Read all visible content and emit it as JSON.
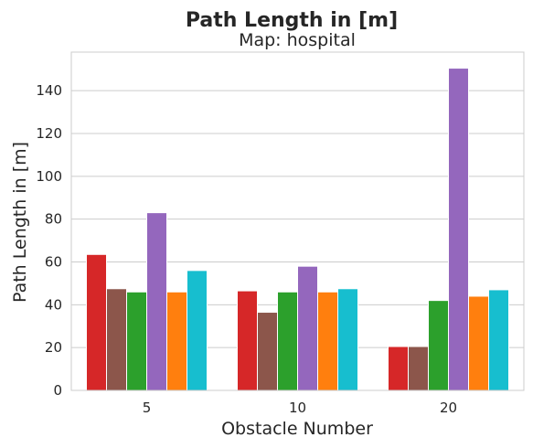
{
  "chart_data": {
    "type": "bar",
    "title": "Path Length in [m]",
    "subtitle": "Map: hospital",
    "xlabel": "Obstacle Number",
    "ylabel": "Path Length in [m]",
    "categories": [
      "5",
      "10",
      "20"
    ],
    "ylim": [
      0,
      158
    ],
    "yticks": [
      "0",
      "20",
      "40",
      "60",
      "80",
      "100",
      "120",
      "140"
    ],
    "grid": "horizontal",
    "legend": "none",
    "series": [
      {
        "color": "#d62728",
        "values": [
          63.5,
          46.5,
          20.5
        ]
      },
      {
        "color": "#8c564b",
        "values": [
          47.5,
          36.5,
          20.5
        ]
      },
      {
        "color": "#2ca02c",
        "values": [
          46.0,
          46.0,
          42.0
        ]
      },
      {
        "color": "#9467bd",
        "values": [
          83.0,
          58.0,
          150.5
        ]
      },
      {
        "color": "#ff7f0e",
        "values": [
          46.0,
          46.0,
          44.0
        ]
      },
      {
        "color": "#17becf",
        "values": [
          56.0,
          47.5,
          47.0
        ]
      }
    ]
  }
}
